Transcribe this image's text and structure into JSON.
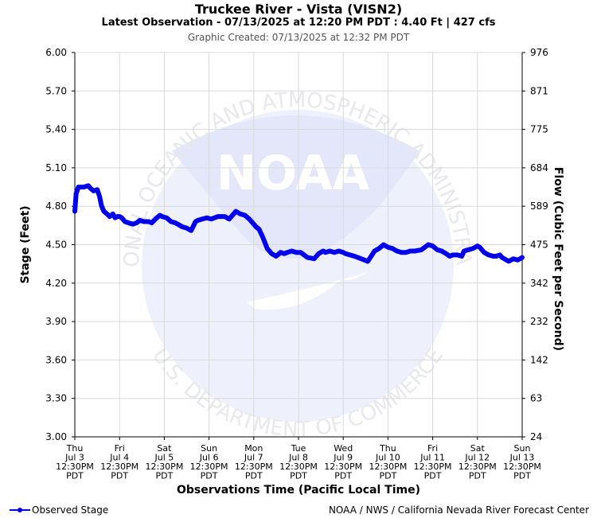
{
  "header": {
    "title": "Truckee River - Vista (VISN2)",
    "subtitle": "Latest Observation - 07/13/2025 at 12:20 PM PDT : 4.40 Ft | 427 cfs",
    "created": "Graphic Created: 07/13/2025 at 12:32 PM PDT"
  },
  "footer": {
    "legend_label": "Observed Stage",
    "credit": "NOAA / NWS / California Nevada River Forecast Center"
  },
  "watermark": {
    "logo_text": "NOAA",
    "ring_text_top": "NATIONAL OCEANIC AND ATMOSPHERIC ADMINISTRATION",
    "ring_text_bottom": "U.S. DEPARTMENT OF COMMERCE"
  },
  "colors": {
    "series": "#0000ee",
    "grid": "#d9d9d9",
    "watermark": "#eef0fb"
  },
  "chart_data": {
    "type": "line",
    "title": "Truckee River - Vista (VISN2)",
    "xlabel": "Observations Time (Pacific Local Time)",
    "ylabel": "Stage (Feet)",
    "y2label": "Flow (Cubic Feet per Second)",
    "ylim": [
      3.0,
      6.0
    ],
    "xlim": [
      0,
      10
    ],
    "grid": true,
    "legend_position": "bottom-left",
    "yticks": [
      "3.00",
      "3.30",
      "3.60",
      "3.90",
      "4.20",
      "4.50",
      "4.80",
      "5.10",
      "5.40",
      "5.70",
      "6.00"
    ],
    "y2ticks": [
      "24",
      "63",
      "142",
      "232",
      "342",
      "475",
      "589",
      "684",
      "775",
      "871",
      "976"
    ],
    "xticks": [
      [
        "Thu",
        "Jul 3",
        "12:30PM",
        "PDT"
      ],
      [
        "Fri",
        "Jul 4",
        "12:30PM",
        "PDT"
      ],
      [
        "Sat",
        "Jul 5",
        "12:30PM",
        "PDT"
      ],
      [
        "Sun",
        "Jul 6",
        "12:30PM",
        "PDT"
      ],
      [
        "Mon",
        "Jul 7",
        "12:30PM",
        "PDT"
      ],
      [
        "Tue",
        "Jul 8",
        "12:30PM",
        "PDT"
      ],
      [
        "Wed",
        "Jul 9",
        "12:30PM",
        "PDT"
      ],
      [
        "Thu",
        "Jul 10",
        "12:30PM",
        "PDT"
      ],
      [
        "Fri",
        "Jul 11",
        "12:30PM",
        "PDT"
      ],
      [
        "Sat",
        "Jul 12",
        "12:30PM",
        "PDT"
      ],
      [
        "Sun",
        "Jul 13",
        "12:30PM",
        "PDT"
      ]
    ],
    "series": [
      {
        "name": "Observed Stage",
        "x": [
          0.0,
          0.03,
          0.08,
          0.12,
          0.2,
          0.3,
          0.35,
          0.42,
          0.5,
          0.55,
          0.6,
          0.65,
          0.72,
          0.78,
          0.85,
          0.9,
          0.95,
          1.0,
          1.05,
          1.12,
          1.2,
          1.3,
          1.38,
          1.45,
          1.55,
          1.65,
          1.72,
          1.8,
          1.9,
          1.95,
          2.05,
          2.15,
          2.25,
          2.3,
          2.4,
          2.5,
          2.6,
          2.7,
          2.75,
          2.85,
          2.95,
          3.05,
          3.2,
          3.35,
          3.45,
          3.6,
          3.7,
          3.8,
          3.9,
          4.0,
          4.05,
          4.12,
          4.2,
          4.3,
          4.4,
          4.5,
          4.6,
          4.68,
          4.75,
          4.85,
          4.95,
          5.05,
          5.2,
          5.35,
          5.45,
          5.55,
          5.6,
          5.7,
          5.8,
          5.9,
          6.0,
          6.05,
          6.15,
          6.25,
          6.4,
          6.55,
          6.7,
          6.8,
          6.9,
          7.0,
          7.1,
          7.2,
          7.3,
          7.4,
          7.5,
          7.6,
          7.75,
          7.9,
          8.0,
          8.1,
          8.2,
          8.25,
          8.3,
          8.38,
          8.45,
          8.55,
          8.65,
          8.7,
          8.8,
          8.9,
          9.0,
          9.05,
          9.15,
          9.25,
          9.35,
          9.42,
          9.5,
          9.55,
          9.6,
          9.7,
          9.8,
          9.9,
          10.0
        ],
        "values": [
          4.76,
          4.9,
          4.95,
          4.95,
          4.95,
          4.96,
          4.94,
          4.92,
          4.93,
          4.88,
          4.8,
          4.76,
          4.74,
          4.72,
          4.74,
          4.71,
          4.72,
          4.72,
          4.71,
          4.68,
          4.67,
          4.66,
          4.67,
          4.69,
          4.68,
          4.68,
          4.67,
          4.7,
          4.73,
          4.72,
          4.71,
          4.68,
          4.67,
          4.66,
          4.64,
          4.63,
          4.61,
          4.68,
          4.69,
          4.7,
          4.71,
          4.7,
          4.72,
          4.72,
          4.7,
          4.76,
          4.74,
          4.73,
          4.7,
          4.66,
          4.64,
          4.62,
          4.56,
          4.47,
          4.43,
          4.41,
          4.44,
          4.43,
          4.44,
          4.45,
          4.44,
          4.44,
          4.4,
          4.39,
          4.43,
          4.45,
          4.44,
          4.45,
          4.44,
          4.45,
          4.44,
          4.43,
          4.42,
          4.41,
          4.39,
          4.37,
          4.45,
          4.47,
          4.5,
          4.48,
          4.47,
          4.45,
          4.44,
          4.44,
          4.45,
          4.45,
          4.46,
          4.5,
          4.49,
          4.46,
          4.45,
          4.44,
          4.43,
          4.41,
          4.42,
          4.42,
          4.41,
          4.45,
          4.46,
          4.47,
          4.49,
          4.48,
          4.44,
          4.42,
          4.41,
          4.41,
          4.42,
          4.4,
          4.39,
          4.37,
          4.39,
          4.38,
          4.4
        ]
      }
    ]
  }
}
